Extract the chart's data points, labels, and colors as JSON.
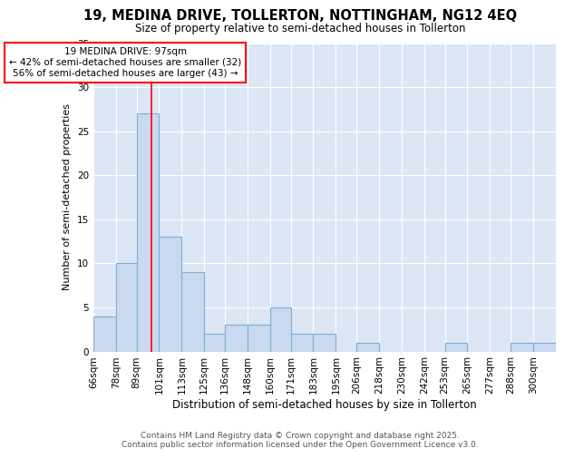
{
  "title1": "19, MEDINA DRIVE, TOLLERTON, NOTTINGHAM, NG12 4EQ",
  "title2": "Size of property relative to semi-detached houses in Tollerton",
  "xlabel": "Distribution of semi-detached houses by size in Tollerton",
  "ylabel": "Number of semi-detached properties",
  "bin_labels": [
    "66sqm",
    "78sqm",
    "89sqm",
    "101sqm",
    "113sqm",
    "125sqm",
    "136sqm",
    "148sqm",
    "160sqm",
    "171sqm",
    "183sqm",
    "195sqm",
    "206sqm",
    "218sqm",
    "230sqm",
    "242sqm",
    "253sqm",
    "265sqm",
    "277sqm",
    "288sqm",
    "300sqm"
  ],
  "bin_edges": [
    66,
    78,
    89,
    101,
    113,
    125,
    136,
    148,
    160,
    171,
    183,
    195,
    206,
    218,
    230,
    242,
    253,
    265,
    277,
    288,
    300
  ],
  "values": [
    4,
    10,
    27,
    13,
    9,
    2,
    3,
    3,
    5,
    2,
    2,
    0,
    1,
    0,
    0,
    0,
    1,
    0,
    0,
    1,
    1
  ],
  "bar_color": "#c9d9f0",
  "bar_edgecolor": "#7bafd4",
  "bar_linewidth": 0.8,
  "ref_line_x": 97,
  "ref_line_color": "red",
  "annotation_text": "19 MEDINA DRIVE: 97sqm\n← 42% of semi-detached houses are smaller (32)\n56% of semi-detached houses are larger (43) →",
  "annotation_box_color": "red",
  "ylim": [
    0,
    35
  ],
  "yticks": [
    0,
    5,
    10,
    15,
    20,
    25,
    30,
    35
  ],
  "plot_bg_color": "#dce6f5",
  "fig_bg_color": "#ffffff",
  "footer_text": "Contains HM Land Registry data © Crown copyright and database right 2025.\nContains public sector information licensed under the Open Government Licence v3.0.",
  "title1_fontsize": 10.5,
  "title2_fontsize": 8.5,
  "xlabel_fontsize": 8.5,
  "ylabel_fontsize": 8.0,
  "tick_fontsize": 7.5,
  "annotation_fontsize": 7.5,
  "footer_fontsize": 6.5
}
